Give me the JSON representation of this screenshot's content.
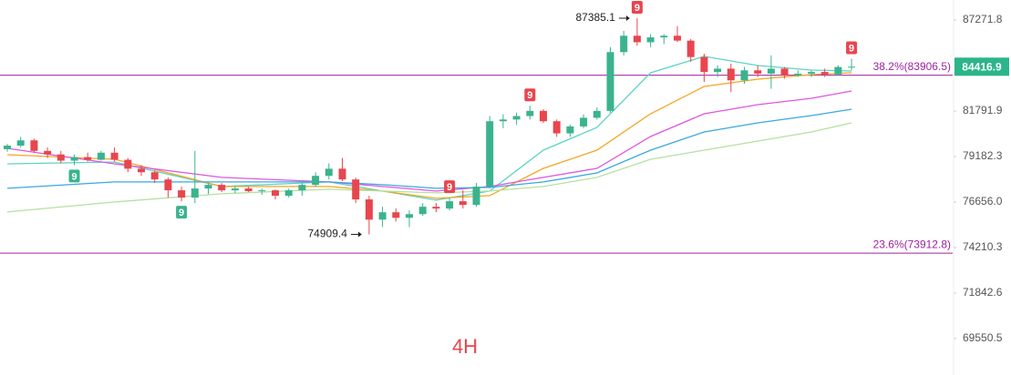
{
  "chart_data": {
    "type": "candlestick",
    "watermark": "4H",
    "log_scale": true,
    "grid": false,
    "ylim": [
      67768,
      88526
    ],
    "yticks": [
      87271.8,
      81791.9,
      79182.3,
      {
        "value": 76656,
        "label": "76656.0"
      },
      74210.3,
      71842.6,
      69550.5
    ],
    "up_color": "#3bb38f",
    "down_color": "#e8464f",
    "categories": [
      null,
      null,
      null,
      null,
      null,
      null,
      null,
      null,
      null,
      null,
      null,
      null,
      null,
      null,
      null,
      null,
      null,
      null,
      null,
      null,
      null,
      null,
      null,
      null,
      null,
      null,
      null,
      null,
      null,
      null,
      null,
      null,
      null,
      null,
      null,
      null,
      null,
      null,
      null,
      null,
      null,
      null,
      null,
      null,
      null,
      null,
      null,
      null,
      null,
      null,
      null,
      null,
      null,
      null,
      null,
      null,
      null,
      null,
      null,
      null,
      null,
      null,
      null,
      null
    ],
    "open": [
      79600,
      79800,
      80100,
      79500,
      79300,
      78950,
      79150,
      79000,
      79400,
      79000,
      78500,
      78300,
      77900,
      77300,
      76900,
      77400,
      77600,
      77300,
      77400,
      77250,
      77300,
      77000,
      77300,
      77600,
      78100,
      78500,
      77900,
      76800,
      75700,
      76100,
      75800,
      76000,
      76400,
      76300,
      76700,
      76500,
      77500,
      81200,
      81300,
      81500,
      81800,
      81200,
      80500,
      80900,
      81400,
      81800,
      85300,
      86300,
      85900,
      86200,
      86300,
      86000,
      85000,
      84100,
      84300,
      83600,
      84200,
      84000,
      84300,
      83900,
      84000,
      84100,
      83950,
      84400
    ],
    "high": [
      79900,
      80300,
      80200,
      79700,
      79500,
      79300,
      79400,
      79500,
      79700,
      79100,
      78700,
      78400,
      78000,
      77500,
      79500,
      77700,
      77700,
      77500,
      77500,
      77400,
      77350,
      77400,
      77700,
      78300,
      78800,
      79100,
      78000,
      77000,
      76400,
      76300,
      76200,
      76600,
      76600,
      76900,
      77300,
      77700,
      81500,
      81600,
      81700,
      82100,
      81900,
      81300,
      81000,
      81600,
      82000,
      85600,
      86600,
      87385.1,
      86400,
      86400,
      86900,
      86100,
      85200,
      84500,
      84600,
      84400,
      84500,
      85100,
      84400,
      84200,
      84200,
      84300,
      84500,
      84900
    ],
    "low": [
      79450,
      79700,
      79400,
      79100,
      78800,
      78700,
      78900,
      78950,
      78900,
      78300,
      78100,
      77700,
      76900,
      76700,
      76600,
      77100,
      77200,
      77150,
      77200,
      77050,
      76800,
      76900,
      77000,
      77500,
      77900,
      77800,
      76600,
      74909.4,
      75300,
      75600,
      75300,
      75900,
      76100,
      76200,
      76300,
      76400,
      77400,
      80800,
      81000,
      81300,
      81100,
      80300,
      80300,
      80800,
      81300,
      81700,
      85100,
      85700,
      85600,
      85800,
      85900,
      84700,
      83500,
      83800,
      82900,
      83400,
      83800,
      83100,
      83700,
      83800,
      83800,
      83800,
      83900,
      84200
    ],
    "close": [
      79800,
      80100,
      79500,
      79300,
      78950,
      79150,
      79000,
      79400,
      79000,
      78500,
      78300,
      77900,
      77300,
      76900,
      77400,
      77600,
      77300,
      77400,
      77250,
      77300,
      77000,
      77300,
      77600,
      78100,
      78500,
      77900,
      76800,
      75700,
      76100,
      75800,
      76000,
      76400,
      76300,
      76700,
      76500,
      77500,
      81200,
      81300,
      81500,
      81800,
      81200,
      80500,
      80900,
      81400,
      81800,
      85300,
      86300,
      85900,
      86200,
      86300,
      86000,
      85000,
      84100,
      84300,
      83600,
      84200,
      84000,
      84300,
      83900,
      84000,
      84100,
      83950,
      84400,
      84416.9
    ],
    "series": [
      {
        "color": "#5fd3c4",
        "x": [
          0,
          8,
          16,
          24,
          28,
          32,
          36,
          40,
          44,
          48,
          52,
          56,
          60,
          63
        ],
        "values": [
          78774,
          78876,
          77508,
          77760,
          77258,
          76760,
          77258,
          79544,
          80842,
          84050,
          85040,
          84487,
          84214,
          84160
        ]
      },
      {
        "color": "#f5a623",
        "x": [
          0,
          8,
          16,
          24,
          28,
          32,
          36,
          40,
          44,
          48,
          52,
          56,
          60,
          63
        ],
        "values": [
          79286,
          79030,
          77508,
          77508,
          77258,
          76859,
          77008,
          78519,
          79544,
          81631,
          83236,
          83670,
          83940,
          84050
        ]
      },
      {
        "color": "#e056e0",
        "x": [
          0,
          8,
          16,
          24,
          28,
          32,
          36,
          40,
          44,
          48,
          52,
          56,
          60,
          63
        ],
        "values": [
          79647,
          78774,
          78012,
          77760,
          77508,
          77258,
          77508,
          78012,
          78519,
          80320,
          81631,
          82163,
          82537,
          82966
        ]
      },
      {
        "color": "#3aa8e0",
        "x": [
          0,
          8,
          16,
          24,
          28,
          32,
          36,
          40,
          44,
          48,
          52,
          56,
          60,
          63
        ],
        "values": [
          77408,
          77760,
          77760,
          77760,
          77609,
          77408,
          77458,
          77760,
          78265,
          79544,
          80581,
          81104,
          81525,
          81897
        ]
      },
      {
        "color": "#b5e0a0",
        "x": [
          0,
          8,
          16,
          24,
          28,
          32,
          36,
          40,
          44,
          48,
          52,
          56,
          60,
          63
        ],
        "values": [
          76116,
          76660,
          77108,
          77358,
          77258,
          77158,
          77258,
          77508,
          78012,
          79030,
          79544,
          80060,
          80581,
          81104
        ]
      }
    ],
    "fib_levels": [
      {
        "label": "38.2%(83906.5)",
        "value": 83906.5,
        "color": "#a020a0"
      },
      {
        "label": "23.6%(73912.8)",
        "value": 73912.8,
        "color": "#a020a0"
      }
    ],
    "td_marks": [
      {
        "index": 5,
        "label": "9",
        "position": "below",
        "color": "#3bb38f"
      },
      {
        "index": 13,
        "label": "9",
        "position": "below",
        "color": "#3bb38f"
      },
      {
        "index": 33,
        "label": "9",
        "position": "above",
        "color": "#e8464f"
      },
      {
        "index": 39,
        "label": "9",
        "position": "above",
        "color": "#e8464f"
      },
      {
        "index": 47,
        "label": "9",
        "position": "above",
        "color": "#e8464f"
      },
      {
        "index": 63,
        "label": "9",
        "position": "above",
        "color": "#e8464f"
      }
    ],
    "extreme_labels": [
      {
        "index": 47,
        "field": "high"
      },
      {
        "index": 27,
        "field": "low"
      }
    ],
    "last_price_color": "#2bb58a"
  }
}
